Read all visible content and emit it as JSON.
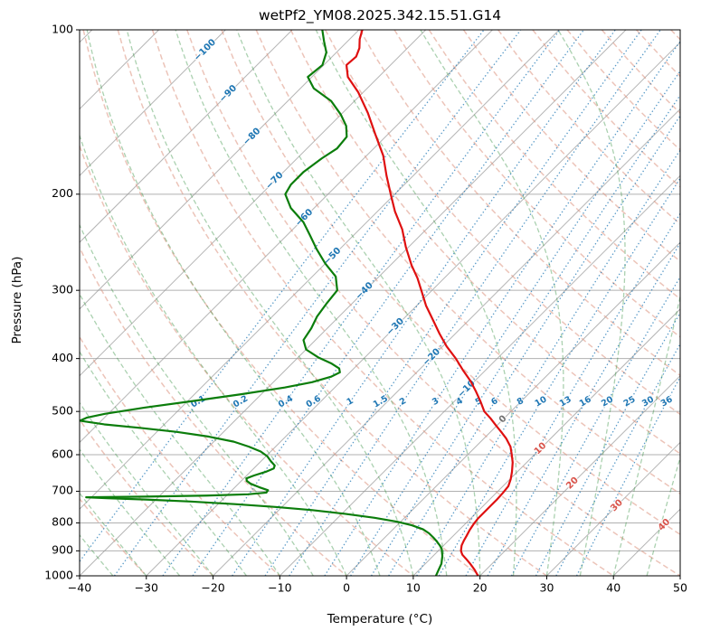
{
  "title": "wetPf2_YM08.2025.342.15.51.G14",
  "chart_data": {
    "type": "line",
    "subtype": "skewT-logP-sounding",
    "xlabel": "Temperature (°C)",
    "ylabel": "Pressure (hPa)",
    "xlim": [
      -40,
      50
    ],
    "plim": [
      100,
      1000
    ],
    "skew": 1.0,
    "grid": true,
    "x_ticks": [
      -40,
      -30,
      -20,
      -10,
      0,
      10,
      20,
      30,
      40,
      50
    ],
    "x_tick_labels": [
      "−40",
      "−30",
      "−20",
      "−10",
      "0",
      "10",
      "20",
      "30",
      "40",
      "50"
    ],
    "y_ticks": [
      100,
      200,
      300,
      400,
      500,
      600,
      700,
      800,
      900,
      1000
    ],
    "y_tick_labels": [
      "100",
      "200",
      "300",
      "400",
      "500",
      "600",
      "700",
      "800",
      "900",
      "1000"
    ],
    "isotherms": {
      "start": -130,
      "end": 50,
      "step": 10,
      "color": "#a9a9a9"
    },
    "isotherm_labels": [
      {
        "label": "−100",
        "t": -100,
        "p": 109
      },
      {
        "label": "−90",
        "t": -90,
        "p": 131
      },
      {
        "label": "−80",
        "t": -80,
        "p": 157
      },
      {
        "label": "−70",
        "t": -70,
        "p": 189
      },
      {
        "label": "−60",
        "t": -60,
        "p": 221
      },
      {
        "label": "−50",
        "t": -50,
        "p": 260
      },
      {
        "label": "−40",
        "t": -40,
        "p": 301
      },
      {
        "label": "−30",
        "t": -30,
        "p": 350
      },
      {
        "label": "−20",
        "t": -20,
        "p": 398
      },
      {
        "label": "−10",
        "t": -10,
        "p": 455
      },
      {
        "label": "0",
        "t": 0,
        "p": 517
      },
      {
        "label": "10",
        "t": 10,
        "p": 585
      },
      {
        "label": "20",
        "t": 20,
        "p": 677
      },
      {
        "label": "30",
        "t": 30,
        "p": 744
      },
      {
        "label": "40",
        "t": 40,
        "p": 807
      }
    ],
    "isotherm_label_colors": {
      "negative": "#1f77b4",
      "zero": "#707070",
      "positive": "#d9534a"
    },
    "dry_adiabats": {
      "theta_start": -40,
      "theta_end": 190,
      "step": 10,
      "color": "#dd9480"
    },
    "moist_adiabats": {
      "thetaw_start": -40,
      "thetaw_end": 50,
      "step": 5,
      "color": "#2e8b3a"
    },
    "mixing_ratios": {
      "values": [
        0.1,
        0.2,
        0.4,
        0.6,
        1,
        1.5,
        2,
        3,
        4,
        5,
        6,
        8,
        10,
        13,
        16,
        20,
        25,
        30,
        36
      ],
      "labels": [
        "0.1",
        "0.2",
        "0.4",
        "0.6",
        "1",
        "1.5",
        "2",
        "3",
        "4",
        "5",
        "6",
        "8",
        "10",
        "13",
        "16",
        "20",
        "25",
        "30",
        "36"
      ],
      "label_pressure": 480,
      "color": "#1f77b4"
    },
    "series": [
      {
        "name": "temperature",
        "color": "#df1010",
        "points": [
          [
            100,
            -79.5
          ],
          [
            104,
            -78.5
          ],
          [
            108,
            -77.2
          ],
          [
            112,
            -76.4
          ],
          [
            116,
            -76.6
          ],
          [
            122,
            -74.6
          ],
          [
            130,
            -70.8
          ],
          [
            142,
            -66.2
          ],
          [
            155,
            -62.0
          ],
          [
            170,
            -57.5
          ],
          [
            185,
            -54.0
          ],
          [
            200,
            -50.6
          ],
          [
            215,
            -47.4
          ],
          [
            232,
            -43.6
          ],
          [
            250,
            -40.4
          ],
          [
            270,
            -36.8
          ],
          [
            285,
            -34.0
          ],
          [
            300,
            -31.6
          ],
          [
            320,
            -28.6
          ],
          [
            340,
            -25.4
          ],
          [
            360,
            -22.4
          ],
          [
            380,
            -19.4
          ],
          [
            400,
            -16.2
          ],
          [
            420,
            -13.4
          ],
          [
            440,
            -10.6
          ],
          [
            460,
            -8.2
          ],
          [
            480,
            -6.0
          ],
          [
            500,
            -4.0
          ],
          [
            515,
            -2.0
          ],
          [
            530,
            -0.2
          ],
          [
            545,
            1.6
          ],
          [
            560,
            3.3
          ],
          [
            580,
            5.2
          ],
          [
            600,
            6.6
          ],
          [
            620,
            7.9
          ],
          [
            645,
            9.2
          ],
          [
            665,
            10.1
          ],
          [
            685,
            10.8
          ],
          [
            705,
            11.0
          ],
          [
            725,
            11.1
          ],
          [
            745,
            11.1
          ],
          [
            765,
            11.1
          ],
          [
            785,
            11.1
          ],
          [
            805,
            11.3
          ],
          [
            825,
            11.6
          ],
          [
            845,
            12.0
          ],
          [
            862,
            12.3
          ],
          [
            880,
            12.7
          ],
          [
            900,
            13.4
          ],
          [
            915,
            14.2
          ],
          [
            930,
            15.3
          ],
          [
            950,
            16.7
          ],
          [
            975,
            18.3
          ],
          [
            1000,
            19.7
          ]
        ]
      },
      {
        "name": "dewpoint",
        "color": "#0b7d0b",
        "points": [
          [
            100,
            -85.5
          ],
          [
            105,
            -83.5
          ],
          [
            110,
            -81.5
          ],
          [
            116,
            -80.2
          ],
          [
            122,
            -80.6
          ],
          [
            128,
            -78.0
          ],
          [
            135,
            -73.5
          ],
          [
            143,
            -70.0
          ],
          [
            150,
            -67.5
          ],
          [
            157,
            -65.8
          ],
          [
            165,
            -65.5
          ],
          [
            172,
            -66.3
          ],
          [
            182,
            -67.0
          ],
          [
            192,
            -67.0
          ],
          [
            200,
            -66.4
          ],
          [
            212,
            -63.5
          ],
          [
            225,
            -59.5
          ],
          [
            238,
            -56.5
          ],
          [
            252,
            -53.5
          ],
          [
            268,
            -50.0
          ],
          [
            283,
            -46.5
          ],
          [
            300,
            -44.2
          ],
          [
            318,
            -43.8
          ],
          [
            335,
            -43.3
          ],
          [
            352,
            -42.4
          ],
          [
            370,
            -41.8
          ],
          [
            385,
            -40.0
          ],
          [
            398,
            -37.0
          ],
          [
            408,
            -34.2
          ],
          [
            417,
            -32.2
          ],
          [
            424,
            -31.5
          ],
          [
            432,
            -32.2
          ],
          [
            442,
            -34.2
          ],
          [
            452,
            -37.5
          ],
          [
            465,
            -43.0
          ],
          [
            478,
            -49.0
          ],
          [
            492,
            -55.5
          ],
          [
            505,
            -60.5
          ],
          [
            513,
            -62.6
          ],
          [
            520,
            -63.2
          ],
          [
            528,
            -59.0
          ],
          [
            536,
            -53.0
          ],
          [
            545,
            -47.0
          ],
          [
            556,
            -41.5
          ],
          [
            568,
            -37.0
          ],
          [
            580,
            -34.0
          ],
          [
            592,
            -31.5
          ],
          [
            604,
            -29.8
          ],
          [
            616,
            -28.6
          ],
          [
            628,
            -27.3
          ],
          [
            636,
            -27.0
          ],
          [
            645,
            -27.7
          ],
          [
            655,
            -28.9
          ],
          [
            663,
            -29.6
          ],
          [
            670,
            -29.2
          ],
          [
            678,
            -28.2
          ],
          [
            688,
            -26.4
          ],
          [
            697,
            -24.6
          ],
          [
            704,
            -24.5
          ],
          [
            709,
            -27.0
          ],
          [
            713,
            -33.0
          ],
          [
            716,
            -42.0
          ],
          [
            718,
            -50.8
          ],
          [
            721,
            -47.5
          ],
          [
            725,
            -41.5
          ],
          [
            731,
            -34.5
          ],
          [
            739,
            -27.5
          ],
          [
            748,
            -21.0
          ],
          [
            758,
            -15.0
          ],
          [
            770,
            -9.5
          ],
          [
            783,
            -4.5
          ],
          [
            796,
            -0.5
          ],
          [
            808,
            2.2
          ],
          [
            822,
            4.5
          ],
          [
            836,
            6.0
          ],
          [
            850,
            7.2
          ],
          [
            864,
            8.3
          ],
          [
            878,
            9.3
          ],
          [
            892,
            10.2
          ],
          [
            906,
            10.8
          ],
          [
            920,
            11.4
          ],
          [
            935,
            11.9
          ],
          [
            950,
            12.4
          ],
          [
            965,
            12.7
          ],
          [
            980,
            13.0
          ],
          [
            1000,
            13.4
          ]
        ]
      }
    ]
  }
}
